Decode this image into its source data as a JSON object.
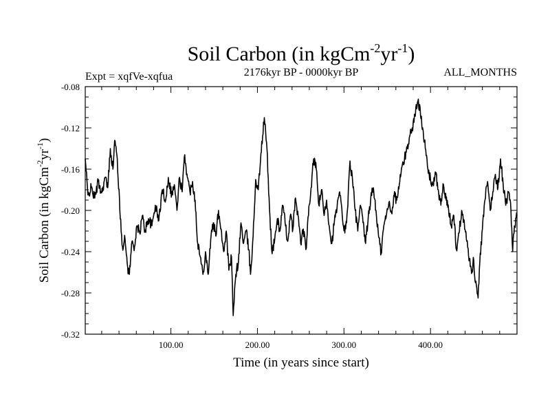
{
  "chart_data": {
    "type": "line",
    "title_main": "Soil Carbon (in kgCm",
    "title_exp1": "-2",
    "title_mid": "yr",
    "title_exp2": "-1",
    "title_end": ")",
    "subtitle_left": "Expt = xqfVe-xqfua",
    "subtitle_center": "2176kyr BP - 0000kyr BP",
    "subtitle_right": "ALL_MONTHS",
    "xlabel": "Time (in years since start)",
    "ylabel_main": "Soil Carbon (in kgCm",
    "ylabel_exp1": "-2",
    "ylabel_mid": "yr",
    "ylabel_exp2": "-1",
    "ylabel_end": ")",
    "xlim": [
      1,
      500
    ],
    "ylim": [
      -0.32,
      -0.08
    ],
    "x_ticks": [
      100,
      200,
      300,
      400
    ],
    "x_tick_labels": [
      "100.00",
      "200.00",
      "300.00",
      "400.00"
    ],
    "y_ticks": [
      -0.08,
      -0.12,
      -0.16,
      -0.2,
      -0.24,
      -0.28,
      -0.32
    ],
    "y_tick_labels": [
      "-0.08",
      "-0.12",
      "-0.16",
      "-0.20",
      "-0.24",
      "-0.28",
      "-0.32"
    ],
    "series": [
      {
        "name": "Soil Carbon",
        "color": "#000000",
        "keypoints": [
          [
            1,
            -0.15
          ],
          [
            4,
            -0.185
          ],
          [
            8,
            -0.178
          ],
          [
            12,
            -0.188
          ],
          [
            16,
            -0.172
          ],
          [
            20,
            -0.183
          ],
          [
            24,
            -0.168
          ],
          [
            27,
            -0.178
          ],
          [
            30,
            -0.14
          ],
          [
            33,
            -0.16
          ],
          [
            35,
            -0.132
          ],
          [
            38,
            -0.15
          ],
          [
            41,
            -0.2
          ],
          [
            44,
            -0.235
          ],
          [
            47,
            -0.228
          ],
          [
            50,
            -0.255
          ],
          [
            52,
            -0.262
          ],
          [
            55,
            -0.23
          ],
          [
            58,
            -0.235
          ],
          [
            61,
            -0.215
          ],
          [
            64,
            -0.222
          ],
          [
            67,
            -0.205
          ],
          [
            70,
            -0.22
          ],
          [
            74,
            -0.208
          ],
          [
            78,
            -0.215
          ],
          [
            82,
            -0.195
          ],
          [
            86,
            -0.21
          ],
          [
            90,
            -0.18
          ],
          [
            94,
            -0.19
          ],
          [
            97,
            -0.168
          ],
          [
            101,
            -0.185
          ],
          [
            104,
            -0.175
          ],
          [
            107,
            -0.2
          ],
          [
            110,
            -0.168
          ],
          [
            113,
            -0.182
          ],
          [
            116,
            -0.146
          ],
          [
            119,
            -0.168
          ],
          [
            122,
            -0.182
          ],
          [
            125,
            -0.172
          ],
          [
            128,
            -0.19
          ],
          [
            131,
            -0.232
          ],
          [
            134,
            -0.245
          ],
          [
            137,
            -0.262
          ],
          [
            140,
            -0.24
          ],
          [
            143,
            -0.262
          ],
          [
            146,
            -0.228
          ],
          [
            149,
            -0.212
          ],
          [
            152,
            -0.225
          ],
          [
            155,
            -0.2
          ],
          [
            158,
            -0.218
          ],
          [
            161,
            -0.24
          ],
          [
            164,
            -0.22
          ],
          [
            167,
            -0.258
          ],
          [
            170,
            -0.245
          ],
          [
            172,
            -0.302
          ],
          [
            175,
            -0.262
          ],
          [
            178,
            -0.25
          ],
          [
            181,
            -0.212
          ],
          [
            184,
            -0.232
          ],
          [
            187,
            -0.22
          ],
          [
            190,
            -0.238
          ],
          [
            192,
            -0.262
          ],
          [
            195,
            -0.225
          ],
          [
            198,
            -0.17
          ],
          [
            201,
            -0.18
          ],
          [
            204,
            -0.145
          ],
          [
            206,
            -0.128
          ],
          [
            208,
            -0.11
          ],
          [
            211,
            -0.14
          ],
          [
            214,
            -0.2
          ],
          [
            217,
            -0.242
          ],
          [
            220,
            -0.228
          ],
          [
            223,
            -0.208
          ],
          [
            226,
            -0.22
          ],
          [
            229,
            -0.195
          ],
          [
            232,
            -0.212
          ],
          [
            235,
            -0.23
          ],
          [
            238,
            -0.205
          ],
          [
            241,
            -0.218
          ],
          [
            244,
            -0.188
          ],
          [
            247,
            -0.205
          ],
          [
            250,
            -0.232
          ],
          [
            253,
            -0.218
          ],
          [
            256,
            -0.238
          ],
          [
            259,
            -0.205
          ],
          [
            262,
            -0.178
          ],
          [
            265,
            -0.15
          ],
          [
            268,
            -0.16
          ],
          [
            271,
            -0.195
          ],
          [
            274,
            -0.18
          ],
          [
            277,
            -0.205
          ],
          [
            280,
            -0.19
          ],
          [
            283,
            -0.215
          ],
          [
            286,
            -0.232
          ],
          [
            289,
            -0.21
          ],
          [
            292,
            -0.198
          ],
          [
            295,
            -0.182
          ],
          [
            298,
            -0.205
          ],
          [
            301,
            -0.222
          ],
          [
            304,
            -0.2
          ],
          [
            307,
            -0.152
          ],
          [
            310,
            -0.172
          ],
          [
            313,
            -0.2
          ],
          [
            316,
            -0.22
          ],
          [
            319,
            -0.195
          ],
          [
            322,
            -0.212
          ],
          [
            325,
            -0.232
          ],
          [
            328,
            -0.208
          ],
          [
            331,
            -0.188
          ],
          [
            334,
            -0.178
          ],
          [
            337,
            -0.2
          ],
          [
            340,
            -0.225
          ],
          [
            343,
            -0.242
          ],
          [
            346,
            -0.215
          ],
          [
            349,
            -0.205
          ],
          [
            352,
            -0.192
          ],
          [
            355,
            -0.202
          ],
          [
            358,
            -0.185
          ],
          [
            361,
            -0.19
          ],
          [
            364,
            -0.175
          ],
          [
            367,
            -0.158
          ],
          [
            370,
            -0.15
          ],
          [
            373,
            -0.14
          ],
          [
            376,
            -0.128
          ],
          [
            379,
            -0.12
          ],
          [
            382,
            -0.108
          ],
          [
            385,
            -0.095
          ],
          [
            388,
            -0.1
          ],
          [
            391,
            -0.12
          ],
          [
            394,
            -0.14
          ],
          [
            397,
            -0.16
          ],
          [
            400,
            -0.17
          ],
          [
            403,
            -0.175
          ],
          [
            406,
            -0.165
          ],
          [
            409,
            -0.18
          ],
          [
            412,
            -0.195
          ],
          [
            415,
            -0.175
          ],
          [
            418,
            -0.19
          ],
          [
            421,
            -0.2
          ],
          [
            424,
            -0.215
          ],
          [
            427,
            -0.205
          ],
          [
            430,
            -0.238
          ],
          [
            433,
            -0.222
          ],
          [
            436,
            -0.2
          ],
          [
            439,
            -0.21
          ],
          [
            442,
            -0.23
          ],
          [
            445,
            -0.248
          ],
          [
            448,
            -0.258
          ],
          [
            450,
            -0.248
          ],
          [
            452,
            -0.27
          ],
          [
            455,
            -0.285
          ],
          [
            457,
            -0.25
          ],
          [
            460,
            -0.218
          ],
          [
            463,
            -0.19
          ],
          [
            466,
            -0.172
          ],
          [
            469,
            -0.2
          ],
          [
            472,
            -0.182
          ],
          [
            475,
            -0.165
          ],
          [
            478,
            -0.178
          ],
          [
            481,
            -0.15
          ],
          [
            484,
            -0.175
          ],
          [
            487,
            -0.195
          ],
          [
            490,
            -0.182
          ],
          [
            493,
            -0.2
          ],
          [
            495,
            -0.24
          ],
          [
            497,
            -0.215
          ],
          [
            500,
            -0.205
          ]
        ]
      }
    ]
  }
}
